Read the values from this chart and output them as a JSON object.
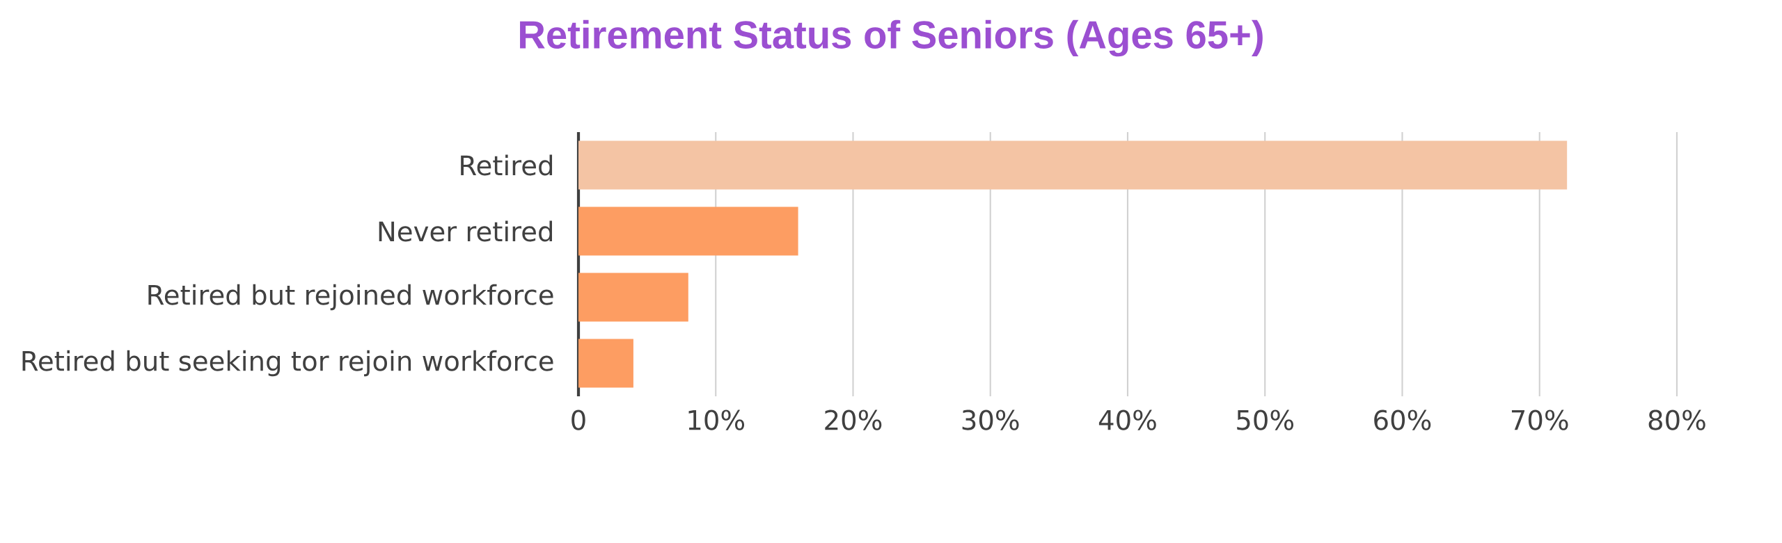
{
  "chart_data": {
    "type": "bar",
    "orientation": "horizontal",
    "title": "Retirement Status of Seniors (Ages 65+)",
    "categories": [
      "Retired",
      "Never retired",
      "Retired but rejoined workforce",
      "Retired but seeking tor rejoin workforce"
    ],
    "values": [
      72,
      16,
      8,
      4
    ],
    "colors": [
      "#f4c4a4",
      "#fd9d62",
      "#fd9d62",
      "#fd9d62"
    ],
    "xlim": [
      0,
      80
    ],
    "xticks": [
      {
        "value": 0,
        "label": "0"
      },
      {
        "value": 10,
        "label": "10%"
      },
      {
        "value": 20,
        "label": "20%"
      },
      {
        "value": 30,
        "label": "30%"
      },
      {
        "value": 40,
        "label": "40%"
      },
      {
        "value": 50,
        "label": "50%"
      },
      {
        "value": 60,
        "label": "60%"
      },
      {
        "value": 70,
        "label": "70%"
      },
      {
        "value": 80,
        "label": "80%"
      }
    ],
    "grid": "x"
  }
}
